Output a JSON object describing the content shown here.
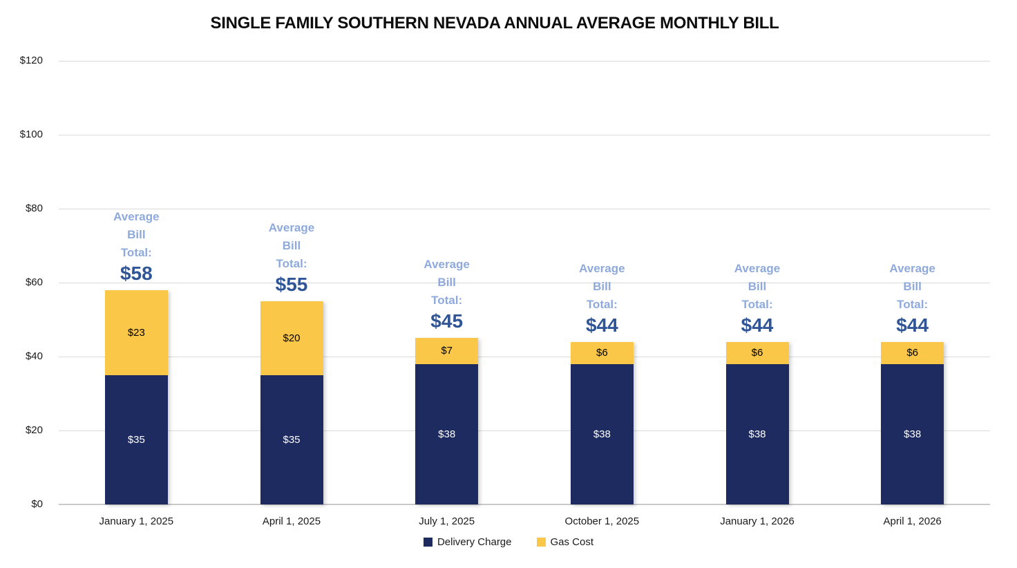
{
  "title": "SINGLE FAMILY SOUTHERN NEVADA ANNUAL AVERAGE MONTHLY BILL",
  "colors": {
    "delivery_charge": "#1e2b61",
    "gas_cost": "#fbc748",
    "annotation_label": "#8ea9db",
    "annotation_total": "#2f5597",
    "gridline": "#d9d9d9",
    "axis_text": "#1a1a1a"
  },
  "chart_data": {
    "type": "bar",
    "stacked": true,
    "title": "SINGLE FAMILY SOUTHERN NEVADA ANNUAL AVERAGE MONTHLY BILL",
    "categories": [
      "January 1, 2025",
      "April 1, 2025",
      "July 1, 2025",
      "October 1, 2025",
      "January 1, 2026",
      "April 1, 2026"
    ],
    "series": [
      {
        "name": "Delivery Charge",
        "color": "#1e2b61",
        "label_color": "#ffffff",
        "values": [
          35,
          35,
          38,
          38,
          38,
          38
        ],
        "labels": [
          "$35",
          "$35",
          "$38",
          "$38",
          "$38",
          "$38"
        ]
      },
      {
        "name": "Gas Cost",
        "color": "#fbc748",
        "label_color": "#000000",
        "values": [
          23,
          20,
          7,
          6,
          6,
          6
        ],
        "labels": [
          "$23",
          "$20",
          "$7",
          "$6",
          "$6",
          "$6"
        ]
      }
    ],
    "totals": {
      "values": [
        58,
        55,
        45,
        44,
        44,
        44
      ],
      "labels": [
        "$58",
        "$55",
        "$45",
        "$44",
        "$44",
        "$44"
      ]
    },
    "annotation_lines": [
      "Average",
      "Bill",
      "Total:"
    ],
    "xlabel": "",
    "ylabel": "",
    "y_axis": {
      "min": 0,
      "max": 120,
      "tick_values": [
        0,
        20,
        40,
        60,
        80,
        100,
        120
      ],
      "tick_labels": [
        "$0",
        "$20",
        "$40",
        "$60",
        "$80",
        "$100",
        "$120"
      ]
    },
    "grid": true,
    "legend_position": "bottom"
  },
  "legend": {
    "items": [
      {
        "label": "Delivery Charge",
        "color": "#1e2b61"
      },
      {
        "label": "Gas Cost",
        "color": "#fbc748"
      }
    ]
  }
}
